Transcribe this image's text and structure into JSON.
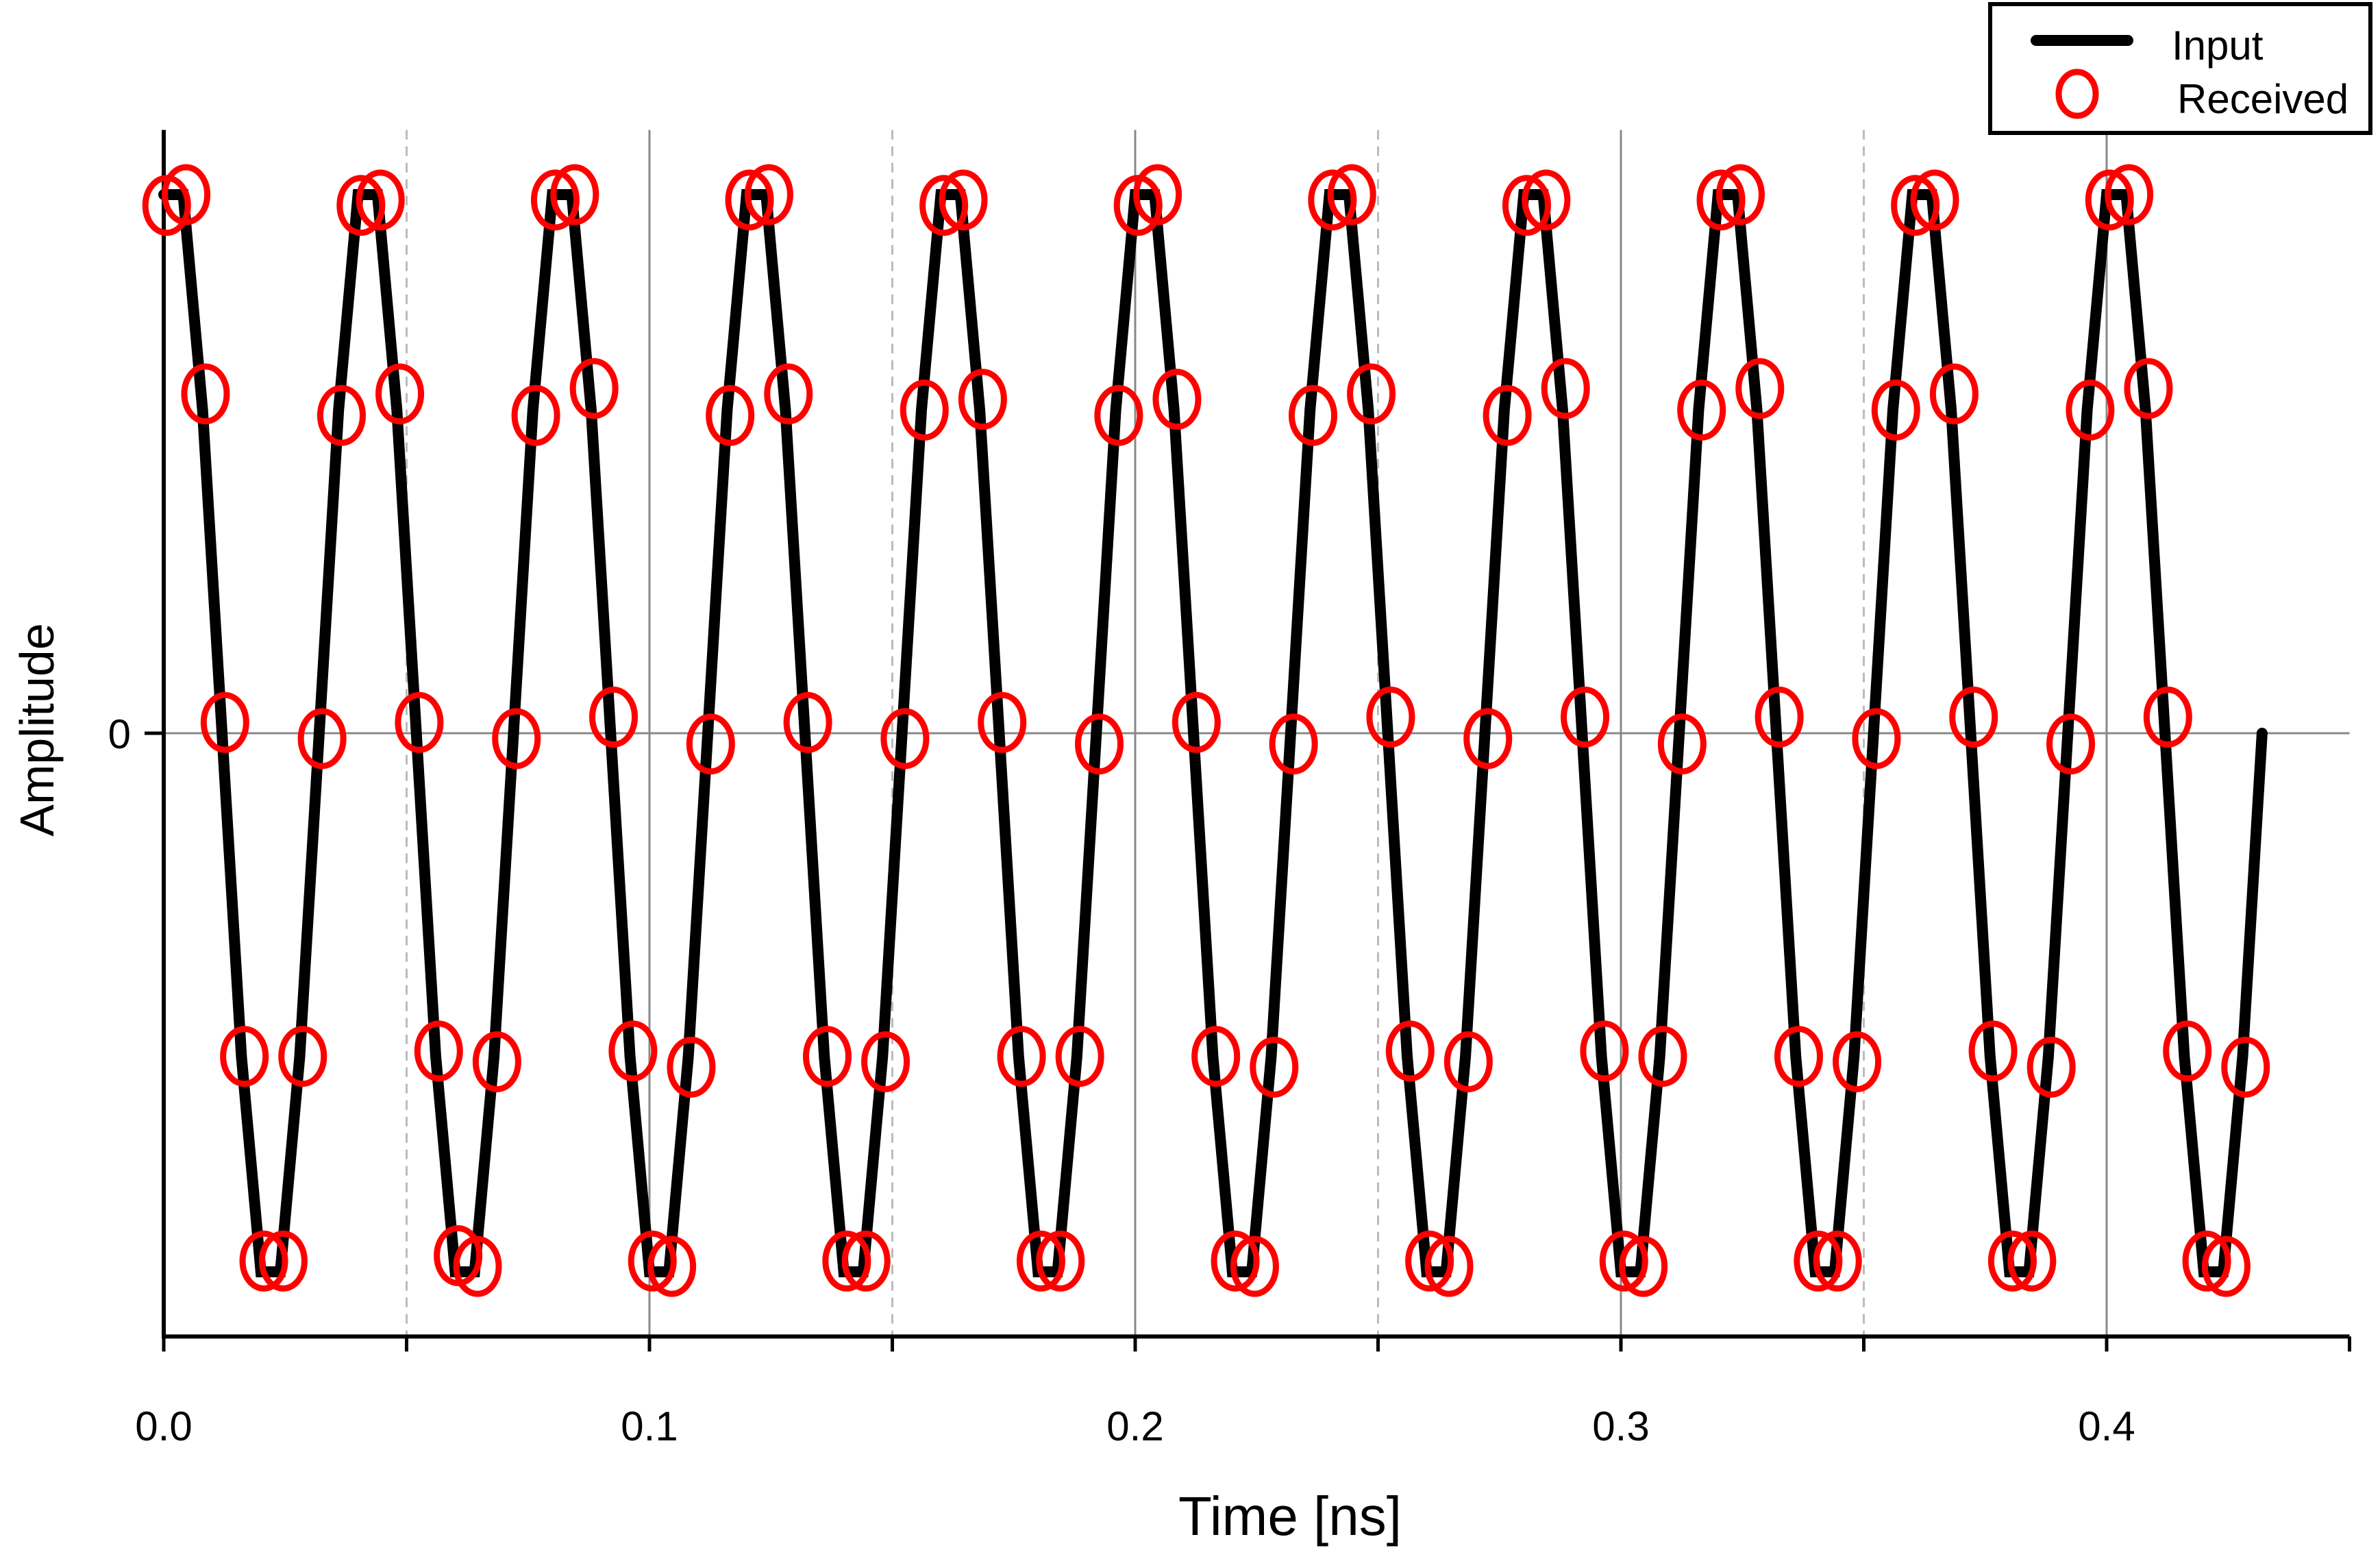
{
  "chart_data": {
    "type": "line",
    "title": "",
    "xlabel": "Time [ns]",
    "ylabel": "Amplitude",
    "xlim": [
      0,
      0.45
    ],
    "ylim": [
      -1.12,
      1.12
    ],
    "xticks": [
      0.0,
      0.1,
      0.2,
      0.3,
      0.4
    ],
    "xtick_labels": [
      "0.0",
      "0.1",
      "0.2",
      "0.3",
      "0.4"
    ],
    "xminor_dashed": [
      0.05,
      0.15,
      0.25,
      0.35
    ],
    "yticks": [
      0
    ],
    "ytick_labels": [
      "0"
    ],
    "grid": true,
    "legend": {
      "placement": "top-right",
      "entries": [
        "Input",
        "Received"
      ]
    },
    "series": [
      {
        "name": "Input",
        "style": "line",
        "color": "#000000",
        "x_start": 0.0,
        "x_step": 0.004,
        "y": [
          1,
          1,
          0.6,
          0,
          -0.6,
          -1,
          -1,
          -0.6,
          0,
          0.6,
          1,
          1,
          0.6,
          0,
          -0.6,
          -1,
          -1,
          -0.6,
          0,
          0.6,
          1,
          1,
          0.6,
          0,
          -0.6,
          -1,
          -1,
          -0.6,
          0,
          0.6,
          1,
          1,
          0.6,
          0,
          -0.6,
          -1,
          -1,
          -0.6,
          0,
          0.6,
          1,
          1,
          0.6,
          0,
          -0.6,
          -1,
          -1,
          -0.6,
          0,
          0.6,
          1,
          1,
          0.6,
          0,
          -0.6,
          -1,
          -1,
          -0.6,
          0,
          0.6,
          1,
          1,
          0.6,
          0,
          -0.6,
          -1,
          -1,
          -0.6,
          0,
          0.6,
          1,
          1,
          0.6,
          0,
          -0.6,
          -1,
          -1,
          -0.6,
          0,
          0.6,
          1,
          1,
          0.6,
          0,
          -0.6,
          -1,
          -1,
          -0.6,
          0,
          0.6,
          1,
          1,
          0.6,
          0,
          -0.6,
          -1,
          -1,
          -0.6,
          0,
          0.6,
          1,
          1,
          0.6,
          0,
          -0.6,
          -1,
          -1,
          -0.6,
          0
        ]
      },
      {
        "name": "Received",
        "style": "open-circle",
        "color": "#ff0000",
        "x_start": 0.0006,
        "x_step": 0.004,
        "y": [
          0.98,
          1.0,
          0.63,
          0.02,
          -0.6,
          -0.98,
          -0.98,
          -0.6,
          -0.01,
          0.59,
          0.98,
          0.99,
          0.63,
          0.02,
          -0.59,
          -0.97,
          -0.99,
          -0.61,
          -0.01,
          0.59,
          0.99,
          1.0,
          0.64,
          0.03,
          -0.59,
          -0.98,
          -0.99,
          -0.62,
          -0.02,
          0.59,
          0.99,
          1.0,
          0.63,
          0.02,
          -0.6,
          -0.98,
          -0.98,
          -0.61,
          -0.01,
          0.6,
          0.98,
          0.99,
          0.62,
          0.02,
          -0.6,
          -0.98,
          -0.98,
          -0.6,
          -0.02,
          0.59,
          0.98,
          1.0,
          0.62,
          0.02,
          -0.6,
          -0.98,
          -0.99,
          -0.62,
          -0.02,
          0.59,
          0.99,
          1.0,
          0.63,
          0.03,
          -0.59,
          -0.98,
          -0.99,
          -0.61,
          -0.01,
          0.59,
          0.98,
          0.99,
          0.64,
          0.03,
          -0.59,
          -0.98,
          -0.99,
          -0.6,
          -0.02,
          0.6,
          0.99,
          1.0,
          0.64,
          0.03,
          -0.6,
          -0.98,
          -0.98,
          -0.61,
          -0.01,
          0.6,
          0.98,
          0.99,
          0.63,
          0.03,
          -0.59,
          -0.98,
          -0.98,
          -0.62,
          -0.02,
          0.6,
          0.99,
          1.0,
          0.64,
          0.03,
          -0.59,
          -0.98,
          -0.99,
          -0.62
        ]
      }
    ]
  }
}
